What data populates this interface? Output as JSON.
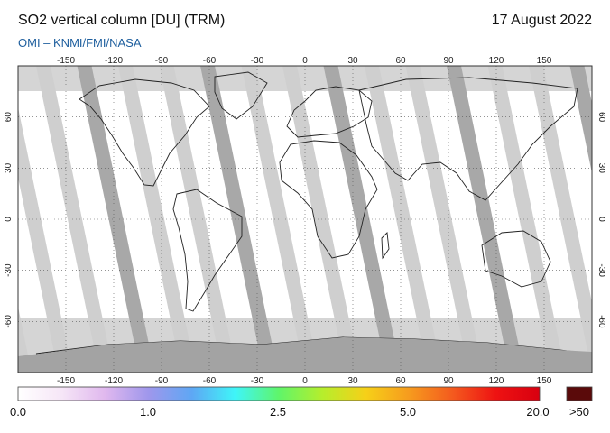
{
  "header": {
    "title": "SO2 vertical column [DU] (TRM)",
    "date": "17 August 2022",
    "credit": "OMI  –  KNMI/FMI/NASA"
  },
  "map": {
    "lon_ticks": [
      "-150",
      "-120",
      "-90",
      "-60",
      "-30",
      "0",
      "30",
      "60",
      "90",
      "120",
      "150"
    ],
    "lat_ticks": [
      "60",
      "30",
      "0",
      "-30",
      "-60"
    ]
  },
  "colorbar": {
    "labels": [
      "0.0",
      "1.0",
      "2.5",
      "5.0",
      "20.0"
    ],
    "overflow_label": ">50",
    "stops": [
      "#ffffff",
      "#f6e6f7",
      "#e0b8ee",
      "#9f97ec",
      "#5ea7f4",
      "#3ff5f8",
      "#5ff56a",
      "#b6ee2c",
      "#f6d018",
      "#f69b1e",
      "#f45a1e",
      "#ee1212",
      "#d80010"
    ],
    "overflow_color": "#5a0a0a"
  },
  "colors": {
    "land_no_data": "#999999",
    "swath_gap": "#cfcfcf",
    "antarctica": "#a3a3a3",
    "low_sun_band": "#d5d5d5"
  }
}
